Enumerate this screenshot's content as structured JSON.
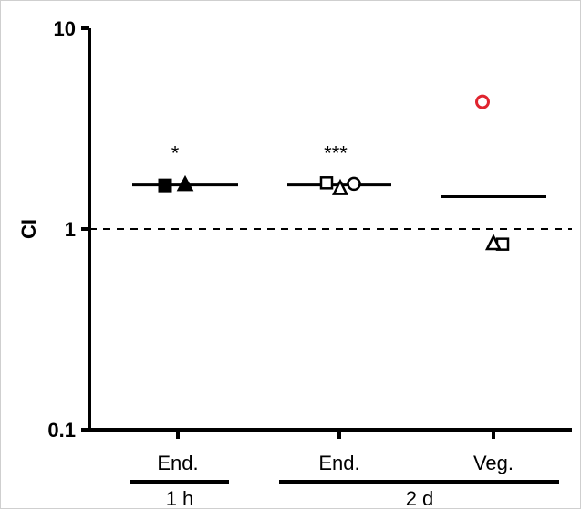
{
  "chart_data": {
    "type": "scatter",
    "ylabel": "CI",
    "yscale": "log",
    "ylim": [
      0.1,
      10
    ],
    "y_ticks": [
      "0.1",
      "1",
      "10"
    ],
    "categories": [
      "End.",
      "End.",
      "Veg."
    ],
    "groups": [
      {
        "label": "1 h",
        "categories": [
          0
        ]
      },
      {
        "label": "2 d",
        "categories": [
          1,
          2
        ]
      }
    ],
    "reference_line": {
      "y": 1,
      "style": "dashed"
    },
    "points": [
      {
        "category": 0,
        "y": 1.65,
        "marker": "square",
        "filled": true,
        "color": "#000000"
      },
      {
        "category": 0,
        "y": 1.68,
        "marker": "triangle",
        "filled": true,
        "color": "#000000"
      },
      {
        "category": 1,
        "y": 1.7,
        "marker": "square",
        "filled": false,
        "color": "#000000"
      },
      {
        "category": 1,
        "y": 1.6,
        "marker": "triangle",
        "filled": false,
        "color": "#000000"
      },
      {
        "category": 1,
        "y": 1.68,
        "marker": "circle",
        "filled": false,
        "color": "#000000"
      },
      {
        "category": 2,
        "y": 4.3,
        "marker": "circle",
        "filled": false,
        "color": "#e0242f"
      },
      {
        "category": 2,
        "y": 0.84,
        "marker": "square",
        "filled": false,
        "color": "#000000"
      },
      {
        "category": 2,
        "y": 0.85,
        "marker": "triangle",
        "filled": false,
        "color": "#000000"
      }
    ],
    "means": [
      {
        "category": 0,
        "y": 1.66
      },
      {
        "category": 1,
        "y": 1.66
      },
      {
        "category": 2,
        "y": 1.45
      }
    ],
    "annotations": [
      {
        "category": 0,
        "text": "*"
      },
      {
        "category": 1,
        "text": "***"
      }
    ]
  }
}
